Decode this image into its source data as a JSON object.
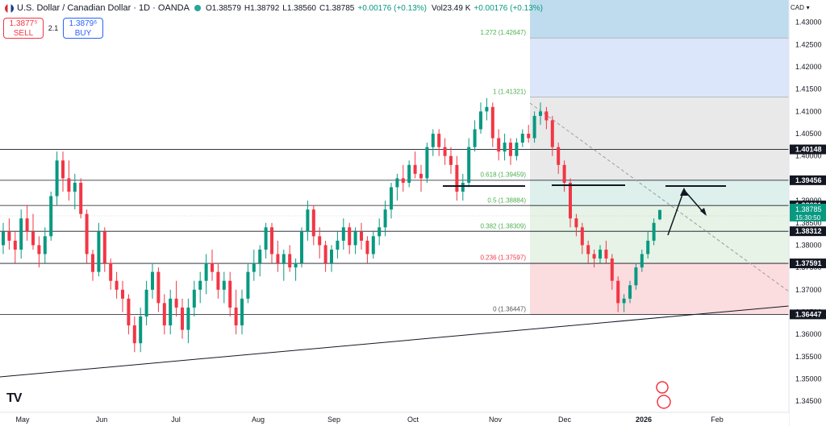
{
  "header": {
    "title": "U.S. Dollar / Canadian Dollar · 1D · OANDA",
    "open": "O1.38579",
    "high": "H1.38792",
    "low": "L1.38560",
    "close": "C1.38785",
    "change": "+0.00176 (+0.13%)",
    "volume": "Vol23.49 K",
    "vol_change": "+0.00176 (+0.13%)"
  },
  "trade": {
    "sell_price": "1.3877⁵",
    "sell_label": "SELL",
    "spread": "2.1",
    "buy_price": "1.3879⁶",
    "buy_label": "BUY"
  },
  "currency_label": "CAD",
  "colors": {
    "up": "#089981",
    "down": "#f23645",
    "current_price": "#089981"
  },
  "chart_data": {
    "type": "candlestick",
    "series": [
      {
        "name": "USDCAD daily candles (approximate)",
        "values": [
          [
            1.38,
            1.385,
            1.378,
            1.383
          ],
          [
            1.383,
            1.386,
            1.379,
            1.381
          ],
          [
            1.381,
            1.383,
            1.376,
            1.379
          ],
          [
            1.379,
            1.388,
            1.377,
            1.386
          ],
          [
            1.386,
            1.389,
            1.381,
            1.383
          ],
          [
            1.383,
            1.387,
            1.379,
            1.38
          ],
          [
            1.38,
            1.382,
            1.375,
            1.378
          ],
          [
            1.378,
            1.384,
            1.376,
            1.382
          ],
          [
            1.382,
            1.392,
            1.381,
            1.391
          ],
          [
            1.391,
            1.401,
            1.389,
            1.399
          ],
          [
            1.399,
            1.401,
            1.392,
            1.395
          ],
          [
            1.395,
            1.399,
            1.39,
            1.392
          ],
          [
            1.392,
            1.396,
            1.388,
            1.394
          ],
          [
            1.394,
            1.395,
            1.386,
            1.387
          ],
          [
            1.387,
            1.388,
            1.376,
            1.378
          ],
          [
            1.378,
            1.379,
            1.372,
            1.374
          ],
          [
            1.374,
            1.385,
            1.373,
            1.383
          ],
          [
            1.383,
            1.384,
            1.374,
            1.376
          ],
          [
            1.376,
            1.377,
            1.37,
            1.372
          ],
          [
            1.372,
            1.374,
            1.368,
            1.37
          ],
          [
            1.37,
            1.372,
            1.365,
            1.368
          ],
          [
            1.368,
            1.369,
            1.36,
            1.362
          ],
          [
            1.362,
            1.364,
            1.356,
            1.358
          ],
          [
            1.358,
            1.366,
            1.356,
            1.364
          ],
          [
            1.364,
            1.372,
            1.362,
            1.37
          ],
          [
            1.37,
            1.376,
            1.368,
            1.374
          ],
          [
            1.374,
            1.375,
            1.365,
            1.367
          ],
          [
            1.367,
            1.369,
            1.36,
            1.362
          ],
          [
            1.362,
            1.37,
            1.36,
            1.368
          ],
          [
            1.368,
            1.372,
            1.364,
            1.366
          ],
          [
            1.366,
            1.368,
            1.359,
            1.361
          ],
          [
            1.361,
            1.368,
            1.358,
            1.366
          ],
          [
            1.366,
            1.372,
            1.364,
            1.37
          ],
          [
            1.37,
            1.374,
            1.367,
            1.372
          ],
          [
            1.372,
            1.378,
            1.369,
            1.376
          ],
          [
            1.376,
            1.379,
            1.372,
            1.374
          ],
          [
            1.374,
            1.376,
            1.368,
            1.37
          ],
          [
            1.37,
            1.374,
            1.367,
            1.372
          ],
          [
            1.372,
            1.374,
            1.364,
            1.366
          ],
          [
            1.366,
            1.37,
            1.36,
            1.362
          ],
          [
            1.362,
            1.37,
            1.36,
            1.368
          ],
          [
            1.368,
            1.376,
            1.367,
            1.374
          ],
          [
            1.374,
            1.379,
            1.372,
            1.376
          ],
          [
            1.376,
            1.38,
            1.373,
            1.379
          ],
          [
            1.379,
            1.385,
            1.377,
            1.384
          ],
          [
            1.384,
            1.385,
            1.376,
            1.378
          ],
          [
            1.378,
            1.381,
            1.374,
            1.376
          ],
          [
            1.376,
            1.379,
            1.372,
            1.378
          ],
          [
            1.378,
            1.38,
            1.374,
            1.375
          ],
          [
            1.375,
            1.377,
            1.372,
            1.376
          ],
          [
            1.376,
            1.384,
            1.375,
            1.383
          ],
          [
            1.383,
            1.39,
            1.381,
            1.388
          ],
          [
            1.388,
            1.389,
            1.38,
            1.382
          ],
          [
            1.382,
            1.384,
            1.377,
            1.38
          ],
          [
            1.38,
            1.381,
            1.374,
            1.376
          ],
          [
            1.376,
            1.38,
            1.374,
            1.379
          ],
          [
            1.379,
            1.383,
            1.377,
            1.381
          ],
          [
            1.381,
            1.386,
            1.379,
            1.384
          ],
          [
            1.384,
            1.385,
            1.378,
            1.38
          ],
          [
            1.38,
            1.384,
            1.378,
            1.383
          ],
          [
            1.383,
            1.385,
            1.379,
            1.381
          ],
          [
            1.381,
            1.382,
            1.376,
            1.378
          ],
          [
            1.378,
            1.383,
            1.377,
            1.382
          ],
          [
            1.382,
            1.386,
            1.38,
            1.384
          ],
          [
            1.384,
            1.39,
            1.382,
            1.388
          ],
          [
            1.388,
            1.394,
            1.386,
            1.393
          ],
          [
            1.393,
            1.396,
            1.39,
            1.395
          ],
          [
            1.395,
            1.398,
            1.392,
            1.394
          ],
          [
            1.394,
            1.399,
            1.393,
            1.398
          ],
          [
            1.398,
            1.401,
            1.395,
            1.396
          ],
          [
            1.396,
            1.398,
            1.392,
            1.395
          ],
          [
            1.395,
            1.403,
            1.394,
            1.402
          ],
          [
            1.402,
            1.406,
            1.4,
            1.405
          ],
          [
            1.405,
            1.406,
            1.4,
            1.402
          ],
          [
            1.402,
            1.404,
            1.398,
            1.4
          ],
          [
            1.4,
            1.402,
            1.396,
            1.398
          ],
          [
            1.398,
            1.4,
            1.39,
            1.392
          ],
          [
            1.392,
            1.396,
            1.39,
            1.394
          ],
          [
            1.394,
            1.404,
            1.393,
            1.402
          ],
          [
            1.402,
            1.408,
            1.401,
            1.406
          ],
          [
            1.406,
            1.412,
            1.405,
            1.41
          ],
          [
            1.41,
            1.413,
            1.408,
            1.411
          ],
          [
            1.411,
            1.412,
            1.402,
            1.404
          ],
          [
            1.404,
            1.406,
            1.399,
            1.401
          ],
          [
            1.401,
            1.405,
            1.399,
            1.403
          ],
          [
            1.403,
            1.404,
            1.398,
            1.4
          ],
          [
            1.4,
            1.404,
            1.399,
            1.403
          ],
          [
            1.403,
            1.406,
            1.402,
            1.405
          ],
          [
            1.405,
            1.407,
            1.403,
            1.404
          ],
          [
            1.404,
            1.41,
            1.403,
            1.409
          ],
          [
            1.409,
            1.412,
            1.407,
            1.41
          ],
          [
            1.41,
            1.411,
            1.406,
            1.408
          ],
          [
            1.408,
            1.409,
            1.4,
            1.402
          ],
          [
            1.402,
            1.403,
            1.396,
            1.398
          ],
          [
            1.398,
            1.399,
            1.392,
            1.394
          ],
          [
            1.394,
            1.395,
            1.384,
            1.386
          ],
          [
            1.386,
            1.387,
            1.382,
            1.384
          ],
          [
            1.384,
            1.385,
            1.378,
            1.38
          ],
          [
            1.38,
            1.381,
            1.376,
            1.378
          ],
          [
            1.378,
            1.379,
            1.375,
            1.377
          ],
          [
            1.377,
            1.38,
            1.376,
            1.379
          ],
          [
            1.379,
            1.381,
            1.376,
            1.377
          ],
          [
            1.377,
            1.378,
            1.37,
            1.372
          ],
          [
            1.372,
            1.373,
            1.365,
            1.367
          ],
          [
            1.367,
            1.369,
            1.365,
            1.368
          ],
          [
            1.368,
            1.372,
            1.367,
            1.371
          ],
          [
            1.371,
            1.376,
            1.37,
            1.375
          ],
          [
            1.375,
            1.379,
            1.374,
            1.378
          ],
          [
            1.378,
            1.383,
            1.377,
            1.381
          ],
          [
            1.381,
            1.386,
            1.38,
            1.385
          ],
          [
            1.3858,
            1.3879,
            1.3856,
            1.3879
          ]
        ]
      }
    ],
    "current_price": 1.38785,
    "countdown": "15:30:50",
    "price_axis": {
      "min": 1.3425,
      "max": 1.435,
      "ticks": [
        "1.43000",
        "1.42500",
        "1.42000",
        "1.41500",
        "1.41000",
        "1.40500",
        "1.40000",
        "1.39500",
        "1.39000",
        "1.38500",
        "1.38000",
        "1.37500",
        "1.37000",
        "1.36500",
        "1.36000",
        "1.35500",
        "1.35000",
        "1.34500"
      ]
    },
    "time_axis": [
      "May",
      "Jun",
      "Jul",
      "Aug",
      "Sep",
      "Oct",
      "Nov",
      "Dec",
      "2026",
      "Feb"
    ],
    "horizontal_levels": [
      "1.40148",
      "1.39456",
      "1.38891",
      "1.38312",
      "1.37591",
      "1.36447"
    ],
    "fibonacci": [
      {
        "label": "1.272 (1.42647)",
        "price": 1.42647
      },
      {
        "label": "1 (1.41321)",
        "price": 1.41321
      },
      {
        "label": "0.618 (1.39459)",
        "price": 1.39459
      },
      {
        "label": "0.5 (1.38884)",
        "price": 1.38884
      },
      {
        "label": "0.382 (1.38309)",
        "price": 1.38309
      },
      {
        "label": "0.236 (1.37597)",
        "price": 1.37597
      },
      {
        "label": "0 (1.36447)",
        "price": 1.36447
      }
    ]
  }
}
